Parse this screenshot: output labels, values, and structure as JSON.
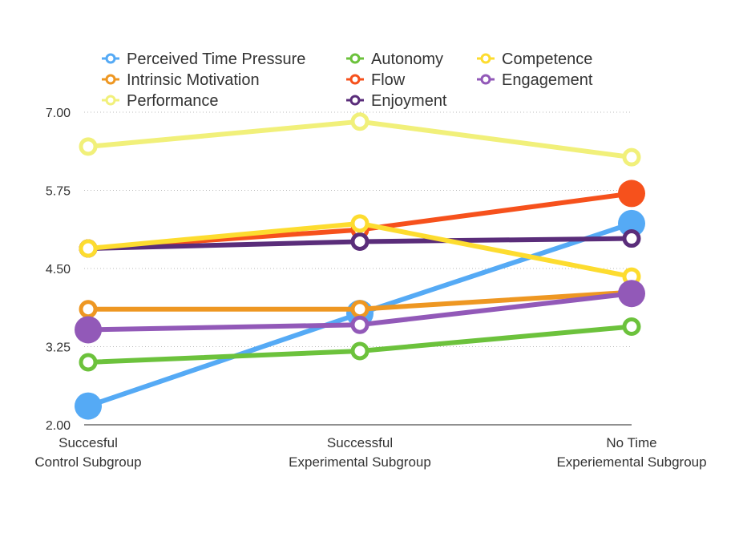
{
  "chart_data": {
    "type": "line",
    "categories": [
      [
        "Succesful",
        "Control Subgroup"
      ],
      [
        "Successful",
        "Experimental Subgroup"
      ],
      [
        "No Time",
        "Experiemental Subgroup"
      ]
    ],
    "ylim": [
      2.0,
      7.0
    ],
    "yticks": [
      "2.00",
      "3.25",
      "4.50",
      "5.75",
      "7.00"
    ],
    "grid": true,
    "legend_position": "top",
    "series": [
      {
        "name": "Perceived Time Pressure",
        "color": "#55aaf5",
        "values": [
          2.3,
          3.78,
          5.22
        ],
        "marker": "filled"
      },
      {
        "name": "Intrinsic Motivation",
        "color": "#ee9722",
        "values": [
          3.85,
          3.85,
          4.12
        ],
        "marker": "ring"
      },
      {
        "name": "Performance",
        "color": "#f1f07a",
        "values": [
          6.45,
          6.85,
          6.28
        ],
        "marker": "ring"
      },
      {
        "name": "Autonomy",
        "color": "#6cc23c",
        "values": [
          3.0,
          3.18,
          3.57
        ],
        "marker": "ring"
      },
      {
        "name": "Flow",
        "color": "#f6511c",
        "values": [
          4.82,
          5.12,
          5.7
        ],
        "marker": "mixed"
      },
      {
        "name": "Enjoyment",
        "color": "#5a2d7a",
        "values": [
          4.82,
          4.93,
          4.98
        ],
        "marker": "ring"
      },
      {
        "name": "Competence",
        "color": "#fddc2f",
        "values": [
          4.82,
          5.22,
          4.37
        ],
        "marker": "ring"
      },
      {
        "name": "Engagement",
        "color": "#9259b8",
        "values": [
          3.52,
          3.6,
          4.1
        ],
        "marker": "filled"
      }
    ]
  }
}
